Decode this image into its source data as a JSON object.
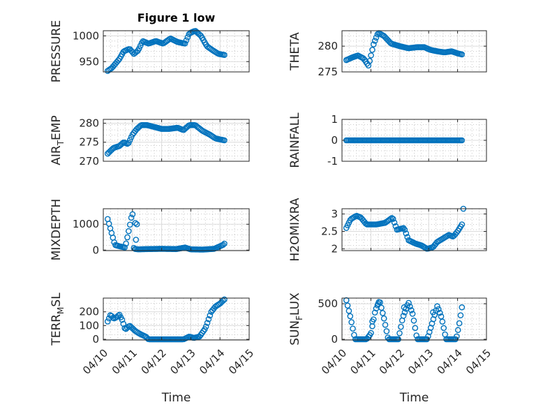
{
  "figure": {
    "title": "Figure 1 low"
  },
  "colors": {
    "marker": "#0072BD",
    "axis": "#262626",
    "grid_major": "#dcdcdc",
    "grid_minor": "#c8c8c8"
  },
  "chart_data": [
    {
      "type": "scatter",
      "ylabel": "PRESSURE",
      "title": "Figure 1 low",
      "ylim": [
        930,
        1010
      ],
      "yticks": [
        950,
        1000
      ],
      "xlim": [
        0,
        5
      ],
      "xticks": [
        "04/10",
        "04/11",
        "04/12",
        "04/13",
        "04/14",
        "04/15"
      ],
      "show_xticks": false,
      "keys": [
        [
          0.15,
          932
        ],
        [
          0.3,
          938
        ],
        [
          0.55,
          955
        ],
        [
          0.7,
          970
        ],
        [
          0.9,
          975
        ],
        [
          1.05,
          965
        ],
        [
          1.2,
          972
        ],
        [
          1.35,
          990
        ],
        [
          1.55,
          985
        ],
        [
          1.8,
          990
        ],
        [
          2.05,
          985
        ],
        [
          2.3,
          995
        ],
        [
          2.55,
          988
        ],
        [
          2.8,
          985
        ],
        [
          2.95,
          1005
        ],
        [
          3.15,
          1010
        ],
        [
          3.35,
          1000
        ],
        [
          3.55,
          980
        ],
        [
          3.75,
          972
        ],
        [
          3.95,
          965
        ],
        [
          4.15,
          963
        ]
      ]
    },
    {
      "type": "scatter",
      "ylabel": "THETA",
      "ylim": [
        275,
        283
      ],
      "yticks": [
        275,
        280
      ],
      "xlim": [
        0,
        5
      ],
      "xticks": [
        "04/10",
        "04/11",
        "04/12",
        "04/13",
        "04/14",
        "04/15"
      ],
      "show_xticks": false,
      "keys": [
        [
          0.15,
          277.3
        ],
        [
          0.35,
          277.8
        ],
        [
          0.55,
          278.2
        ],
        [
          0.75,
          277.6
        ],
        [
          0.92,
          276.2
        ],
        [
          1.1,
          280.5
        ],
        [
          1.25,
          282.6
        ],
        [
          1.45,
          282.0
        ],
        [
          1.7,
          280.5
        ],
        [
          2.0,
          280.0
        ],
        [
          2.3,
          279.6
        ],
        [
          2.6,
          279.8
        ],
        [
          2.85,
          279.8
        ],
        [
          3.05,
          279.3
        ],
        [
          3.3,
          279.0
        ],
        [
          3.55,
          278.8
        ],
        [
          3.8,
          279.0
        ],
        [
          4.0,
          278.6
        ],
        [
          4.15,
          278.4
        ]
      ]
    },
    {
      "type": "scatter",
      "ylabel": "AIR_TEMP",
      "ylim": [
        270,
        281
      ],
      "yticks": [
        270,
        275,
        280
      ],
      "xlim": [
        0,
        5
      ],
      "xticks": [
        "04/10",
        "04/11",
        "04/12",
        "04/13",
        "04/14",
        "04/15"
      ],
      "show_xticks": false,
      "keys": [
        [
          0.15,
          272
        ],
        [
          0.35,
          273.5
        ],
        [
          0.55,
          274
        ],
        [
          0.7,
          275
        ],
        [
          0.85,
          274.5
        ],
        [
          1.0,
          277
        ],
        [
          1.15,
          278.5
        ],
        [
          1.3,
          279.5
        ],
        [
          1.5,
          279.5
        ],
        [
          1.75,
          279
        ],
        [
          2.0,
          278.5
        ],
        [
          2.25,
          278.5
        ],
        [
          2.55,
          278.8
        ],
        [
          2.75,
          278.2
        ],
        [
          2.95,
          279.5
        ],
        [
          3.15,
          279.5
        ],
        [
          3.4,
          278
        ],
        [
          3.65,
          277
        ],
        [
          3.85,
          276
        ],
        [
          4.15,
          275.5
        ]
      ]
    },
    {
      "type": "scatter",
      "ylabel": "RAINFALL",
      "ylim": [
        -1,
        1
      ],
      "yticks": [
        -1,
        0,
        1
      ],
      "xlim": [
        0,
        5
      ],
      "xticks": [
        "04/10",
        "04/11",
        "04/12",
        "04/13",
        "04/14",
        "04/15"
      ],
      "show_xticks": false,
      "keys": [
        [
          0.15,
          0
        ],
        [
          4.15,
          0
        ]
      ]
    },
    {
      "type": "scatter",
      "ylabel": "MIXDEPTH",
      "ylim": [
        -20,
        1600
      ],
      "yticks": [
        0,
        1000
      ],
      "xlim": [
        0,
        5
      ],
      "xticks": [
        "04/10",
        "04/11",
        "04/12",
        "04/13",
        "04/14",
        "04/15"
      ],
      "show_xticks": false,
      "keys": [
        [
          0.15,
          1200
        ],
        [
          0.25,
          800
        ],
        [
          0.4,
          200
        ],
        [
          0.55,
          150
        ],
        [
          0.75,
          100
        ],
        [
          0.9,
          900
        ],
        [
          1.0,
          1500
        ],
        [
          1.05,
          50
        ],
        [
          1.2,
          30
        ],
        [
          1.5,
          40
        ],
        [
          2.0,
          50
        ],
        [
          2.5,
          40
        ],
        [
          2.8,
          100
        ],
        [
          3.0,
          30
        ],
        [
          3.4,
          20
        ],
        [
          3.8,
          50
        ],
        [
          4.1,
          200
        ],
        [
          4.15,
          250
        ]
      ],
      "extra": [
        [
          1.1,
          1050
        ],
        [
          1.15,
          1000
        ],
        [
          1.12,
          400
        ]
      ]
    },
    {
      "type": "scatter",
      "ylabel": "H2OMIXRA",
      "ylim": [
        1.95,
        3.15
      ],
      "yticks": [
        2,
        2.5,
        3
      ],
      "xlim": [
        0,
        5
      ],
      "xticks": [
        "04/10",
        "04/11",
        "04/12",
        "04/13",
        "04/14",
        "04/15"
      ],
      "show_xticks": false,
      "keys": [
        [
          0.15,
          2.6
        ],
        [
          0.3,
          2.85
        ],
        [
          0.5,
          2.95
        ],
        [
          0.65,
          2.9
        ],
        [
          0.85,
          2.7
        ],
        [
          1.2,
          2.7
        ],
        [
          1.5,
          2.75
        ],
        [
          1.75,
          2.9
        ],
        [
          1.9,
          2.55
        ],
        [
          2.15,
          2.6
        ],
        [
          2.3,
          2.25
        ],
        [
          2.55,
          2.15
        ],
        [
          2.75,
          2.1
        ],
        [
          2.95,
          2.0
        ],
        [
          3.15,
          2.05
        ],
        [
          3.3,
          2.2
        ],
        [
          3.5,
          2.3
        ],
        [
          3.7,
          2.4
        ],
        [
          3.85,
          2.35
        ],
        [
          4.0,
          2.5
        ],
        [
          4.15,
          2.7
        ]
      ],
      "extra": [
        [
          4.2,
          3.15
        ]
      ]
    },
    {
      "type": "scatter",
      "ylabel": "TERR_MSL",
      "ylim": [
        -5,
        300
      ],
      "yticks": [
        0,
        100,
        200
      ],
      "xlim": [
        0,
        5
      ],
      "xticks": [
        "04/10",
        "04/11",
        "04/12",
        "04/13",
        "04/14",
        "04/15"
      ],
      "show_xticks": true,
      "keys": [
        [
          0.15,
          130
        ],
        [
          0.25,
          180
        ],
        [
          0.35,
          150
        ],
        [
          0.45,
          160
        ],
        [
          0.55,
          180
        ],
        [
          0.65,
          140
        ],
        [
          0.75,
          70
        ],
        [
          0.9,
          100
        ],
        [
          1.0,
          80
        ],
        [
          1.1,
          60
        ],
        [
          1.25,
          40
        ],
        [
          1.45,
          20
        ],
        [
          1.55,
          0
        ],
        [
          2.0,
          0
        ],
        [
          2.4,
          0
        ],
        [
          2.75,
          0
        ],
        [
          2.95,
          20
        ],
        [
          3.1,
          10
        ],
        [
          3.3,
          20
        ],
        [
          3.5,
          80
        ],
        [
          3.7,
          200
        ],
        [
          3.85,
          240
        ],
        [
          4.0,
          260
        ],
        [
          4.15,
          290
        ]
      ]
    },
    {
      "type": "scatter",
      "ylabel": "SUN_FLUX",
      "ylim": [
        -10,
        580
      ],
      "yticks": [
        0,
        500
      ],
      "xlim": [
        0,
        5
      ],
      "xticks": [
        "04/10",
        "04/11",
        "04/12",
        "04/13",
        "04/14",
        "04/15"
      ],
      "show_xticks": true,
      "keys": [
        [
          0.15,
          550
        ],
        [
          0.3,
          300
        ],
        [
          0.45,
          0
        ],
        [
          0.85,
          0
        ],
        [
          1.0,
          80
        ],
        [
          1.15,
          400
        ],
        [
          1.3,
          550
        ],
        [
          1.45,
          300
        ],
        [
          1.6,
          0
        ],
        [
          1.95,
          0
        ],
        [
          2.1,
          300
        ],
        [
          2.3,
          520
        ],
        [
          2.45,
          350
        ],
        [
          2.6,
          0
        ],
        [
          2.95,
          0
        ],
        [
          3.1,
          200
        ],
        [
          3.3,
          470
        ],
        [
          3.45,
          300
        ],
        [
          3.6,
          0
        ],
        [
          3.95,
          0
        ],
        [
          4.05,
          200
        ],
        [
          4.15,
          450
        ]
      ],
      "extra": [
        [
          1.05,
          250
        ],
        [
          2.15,
          450
        ],
        [
          3.15,
          380
        ],
        [
          1.25,
          500
        ]
      ]
    }
  ]
}
